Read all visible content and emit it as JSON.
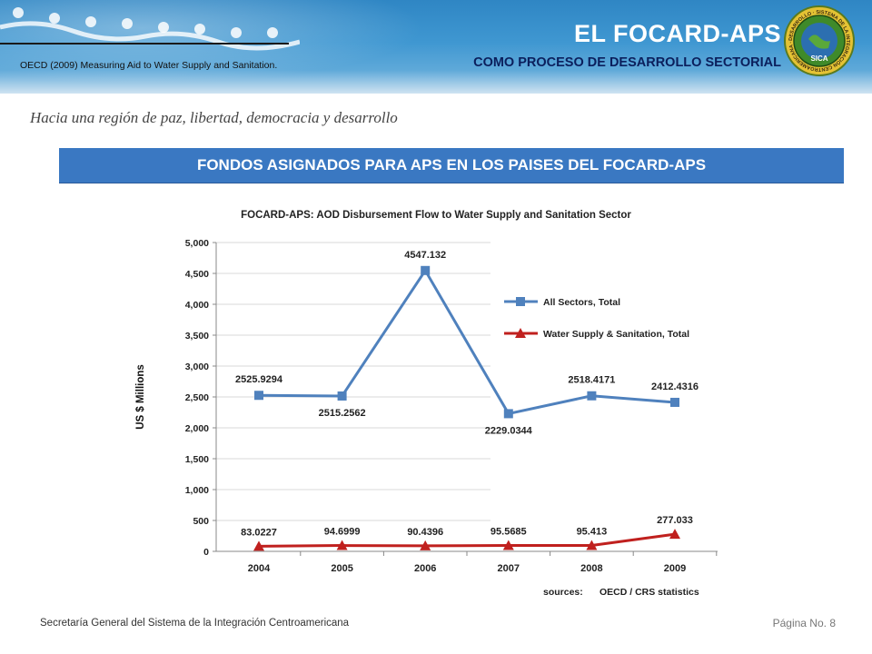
{
  "header": {
    "title": "EL FOCARD-APS",
    "subtitle": "COMO PROCESO DE DESARROLLO SECTORIAL",
    "source_note": "OECD (2009) Measuring Aid to Water Supply and Sanitation.",
    "colors": {
      "accent": "#3a78c2",
      "subtitle": "#0b1f5c"
    }
  },
  "seal": {
    "arc_text": "DESARROLLO · SISTEMA DE LA INTEGRACIÓN CENTROAMERICANA · DEMOCRACIA · PAZ · LIBERTAD",
    "center_text": "SICA"
  },
  "tagline": "Hacia una región de paz, libertad, democracia y desarrollo",
  "banner": "FONDOS ASIGNADOS PARA APS EN LOS PAISES DEL FOCARD-APS",
  "chart_data": {
    "type": "line",
    "title": "FOCARD-APS: AOD Disbursement Flow to Water Supply and Sanitation Sector",
    "ylabel": "US $ Millions",
    "xlabel": "",
    "categories": [
      "2004",
      "2005",
      "2006",
      "2007",
      "2008",
      "2009"
    ],
    "ylim": [
      0,
      5000
    ],
    "yticks": [
      "0",
      "500",
      "1,000",
      "1,500",
      "2,000",
      "2,500",
      "3,000",
      "3,500",
      "4,000",
      "4,500",
      "5,000"
    ],
    "legend_position": "right",
    "series": [
      {
        "name": "All Sectors, Total",
        "color": "#4f81bd",
        "marker": "square",
        "values": [
          2525.9294,
          2515.2562,
          4547.132,
          2229.0344,
          2518.4171,
          2412.4316
        ],
        "labels": [
          "2525.9294",
          "2515.2562",
          "4547.132",
          "2229.0344",
          "2518.4171",
          "2412.4316"
        ]
      },
      {
        "name": "Water Supply & Sanitation, Total",
        "color": "#c0201e",
        "marker": "triangle",
        "values": [
          83.0227,
          94.6999,
          90.4396,
          95.5685,
          95.413,
          277.033
        ],
        "labels": [
          "83.0227",
          "94.6999",
          "90.4396",
          "95.5685",
          "95.413",
          "277.033"
        ]
      }
    ],
    "source_label": "sources:",
    "source_value": "OECD / CRS statistics"
  },
  "footer": {
    "organization": "Secretaría General del Sistema de la Integración Centroamericana",
    "page": "Página No. 8"
  }
}
